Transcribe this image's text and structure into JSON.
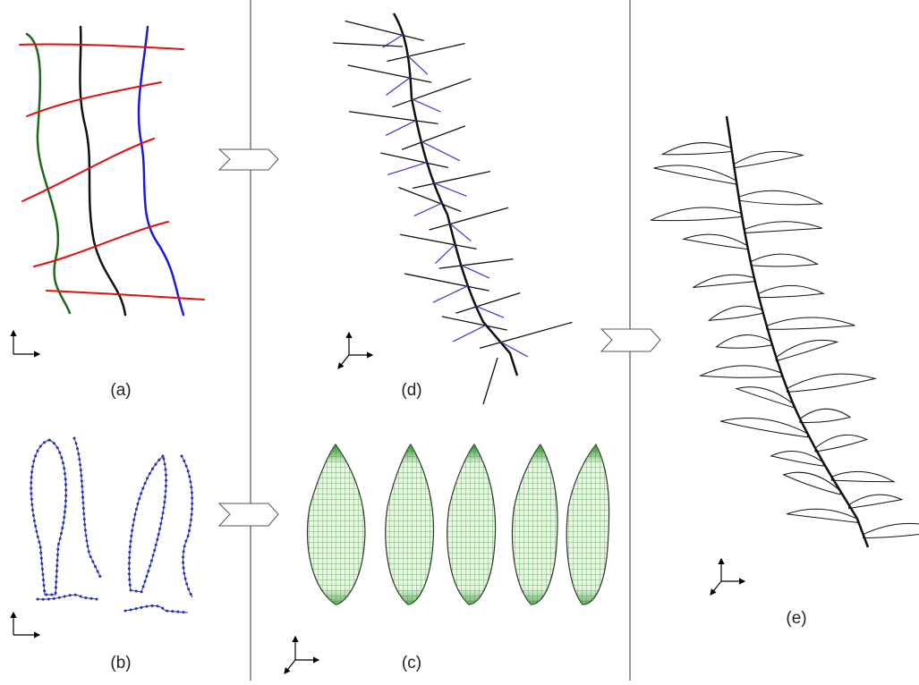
{
  "panels": [
    "(a)",
    "(b)",
    "(c)",
    "(d)",
    "(e)"
  ]
}
